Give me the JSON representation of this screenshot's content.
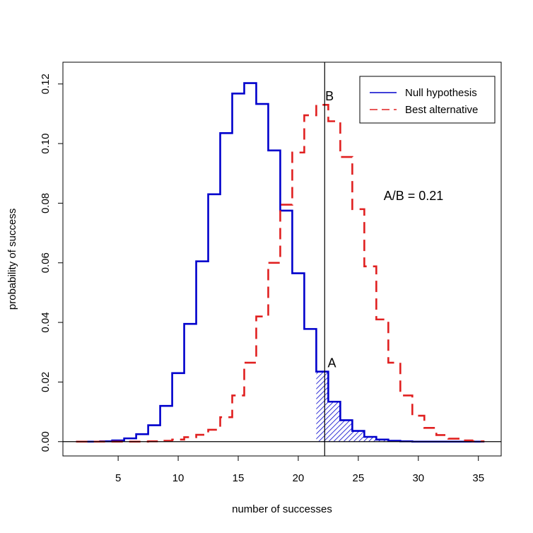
{
  "chart_data": {
    "type": "step",
    "title": "",
    "xlabel": "number of successes",
    "ylabel": "probability of success",
    "xlim": [
      0.4,
      36.9
    ],
    "ylim": [
      -0.0048,
      0.1273
    ],
    "x_ticks": [
      5,
      10,
      15,
      20,
      25,
      30,
      35
    ],
    "x_tick_labels": [
      "5",
      "10",
      "15",
      "20",
      "25",
      "30",
      "35"
    ],
    "y_ticks": [
      0.0,
      0.02,
      0.04,
      0.06,
      0.08,
      0.1,
      0.12
    ],
    "y_tick_labels": [
      "0.00",
      "0.02",
      "0.04",
      "0.06",
      "0.08",
      "0.10",
      "0.12"
    ],
    "series": [
      {
        "name": "Null hypothesis",
        "color": "#0000cc",
        "style": "solid",
        "x": [
          2,
          3,
          4,
          5,
          6,
          7,
          8,
          9,
          10,
          11,
          12,
          13,
          14,
          15,
          16,
          17,
          18,
          19,
          20,
          21,
          22,
          23,
          24,
          25,
          26,
          27,
          28,
          29,
          30,
          31,
          32,
          33,
          34,
          35
        ],
        "values": [
          0.0,
          0.0,
          0.0001,
          0.0004,
          0.0011,
          0.0025,
          0.0055,
          0.012,
          0.023,
          0.0395,
          0.0605,
          0.083,
          0.1035,
          0.1168,
          0.1203,
          0.1133,
          0.0977,
          0.0775,
          0.0565,
          0.0378,
          0.0235,
          0.0134,
          0.0072,
          0.0036,
          0.0016,
          0.0007,
          0.0003,
          0.0001,
          0.0,
          0.0,
          0.0,
          0.0,
          0.0,
          0.0
        ]
      },
      {
        "name": "Best alternative",
        "color": "#e02020",
        "style": "dashed",
        "x": [
          2,
          3,
          4,
          5,
          6,
          7,
          8,
          9,
          10,
          11,
          12,
          13,
          14,
          15,
          16,
          17,
          18,
          19,
          20,
          21,
          22,
          23,
          24,
          25,
          26,
          27,
          28,
          29,
          30,
          31,
          32,
          33,
          34,
          35
        ],
        "values": [
          0.0,
          0.0,
          0.0,
          0.0,
          0.0,
          0.0,
          0.0001,
          0.0003,
          0.0007,
          0.0015,
          0.0023,
          0.004,
          0.0082,
          0.0155,
          0.0265,
          0.042,
          0.06,
          0.0795,
          0.097,
          0.1095,
          0.113,
          0.1075,
          0.0955,
          0.078,
          0.0588,
          0.041,
          0.0265,
          0.0155,
          0.0087,
          0.0046,
          0.0022,
          0.001,
          0.0004,
          0.0001
        ]
      }
    ],
    "shaded_region": {
      "series": "Null hypothesis",
      "from_x": 22,
      "pattern": "hatched"
    },
    "vline_x": 22.2,
    "hline_y": 0,
    "annotations": [
      {
        "text": "A",
        "x": 22.8,
        "y": 0.025
      },
      {
        "text": "B",
        "x": 22.6,
        "y": 0.1145
      },
      {
        "text": "A/B = 0.21",
        "x": 29.6,
        "y": 0.081
      }
    ],
    "legend_position": "top-right"
  }
}
